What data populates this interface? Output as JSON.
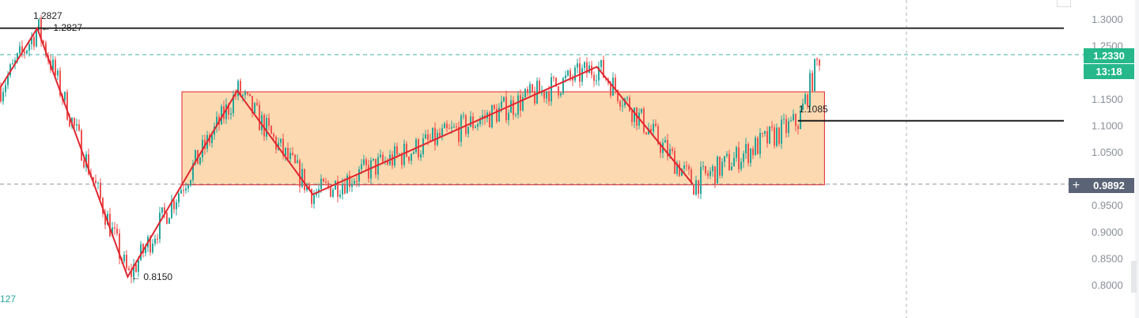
{
  "chart_data": {
    "type": "candlestick",
    "ylim": [
      0.78,
      1.32
    ],
    "y_ticks": [
      "1.3000",
      "1.2500",
      "1.1500",
      "1.1000",
      "1.0500",
      "0.9500",
      "0.9000",
      "0.8500",
      "0.8000"
    ],
    "y_tick_values": [
      1.3,
      1.25,
      1.15,
      1.1,
      1.05,
      0.95,
      0.9,
      0.85,
      0.8
    ],
    "colors": {
      "up": "#26a69a",
      "down": "#ef5350",
      "zigzag": "#e0262f",
      "box_fill": "#fcd9b0",
      "box_stroke": "#e0262f",
      "last_price": "#26b88a",
      "crosshair": "#5b6477"
    },
    "zigzag": [
      [
        0,
        1.17
      ],
      [
        0.035,
        1.2827
      ],
      [
        0.12,
        0.815
      ],
      [
        0.223,
        1.165
      ],
      [
        0.294,
        0.97
      ],
      [
        0.561,
        1.21
      ],
      [
        0.651,
        0.99
      ],
      [
        0.75,
        1.108
      ]
    ],
    "range_box": {
      "from": 0.171,
      "to": 0.775,
      "top": 1.163,
      "bottom": 0.988
    },
    "horizontal_lines": [
      {
        "price": 1.2827,
        "style": "solid"
      },
      {
        "price": 1.1085,
        "style": "solid",
        "from": 0.75
      },
      {
        "price": 1.233,
        "style": "dashed"
      },
      {
        "price": 0.9892,
        "style": "dashed"
      }
    ],
    "annotations": {
      "high_label": "1.2827",
      "high_arrow": "← 1.2827",
      "low_arrow": "← 0.8150",
      "level_label": "1.1085"
    },
    "last_price": "1.2330",
    "countdown": "13:18",
    "crosshair_price": "0.9892",
    "crosshair_icon": "plus-icon",
    "volume_label": "127"
  }
}
